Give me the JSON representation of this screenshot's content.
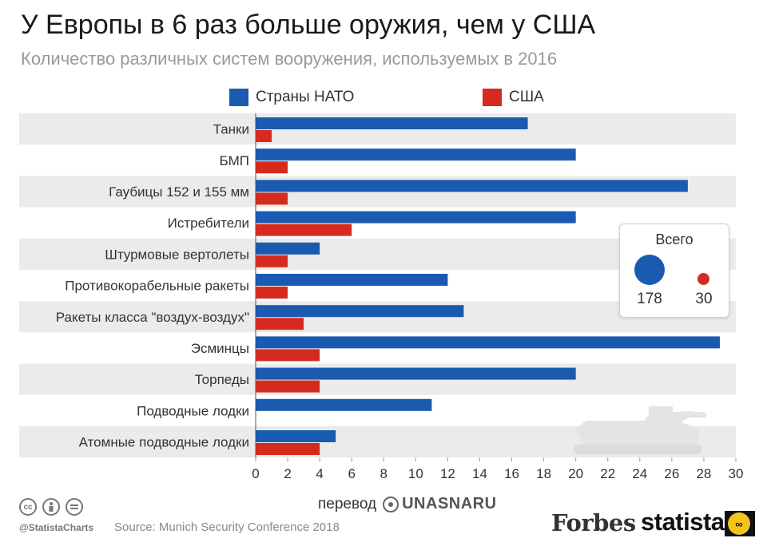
{
  "title": "У Европы в 6 раз больше оружия, чем у США",
  "subtitle": "Количество различных систем вооружения, используемых в 2016",
  "legend": [
    {
      "label": "Страны НАТО",
      "color": "#1a5ab0"
    },
    {
      "label": "США",
      "color": "#d52b1e"
    }
  ],
  "chart_data": {
    "type": "bar",
    "orientation": "horizontal",
    "categories": [
      "Танки",
      "БМП",
      "Гаубицы 152 и 155 мм",
      "Истребители",
      "Штурмовые вертолеты",
      "Противокорабельные ракеты",
      "Ракеты класса \"воздух-воздух\"",
      "Эсминцы",
      "Торпеды",
      "Подводные лодки",
      "Атомные подводные лодки"
    ],
    "series": [
      {
        "name": "Страны НАТО",
        "color": "#1a5ab0",
        "values": [
          17,
          20,
          27,
          20,
          4,
          12,
          13,
          29,
          20,
          11,
          5
        ]
      },
      {
        "name": "США",
        "color": "#d52b1e",
        "values": [
          1,
          2,
          2,
          6,
          2,
          2,
          3,
          4,
          4,
          0,
          4
        ]
      }
    ],
    "xlim": [
      0,
      30
    ],
    "xticks": [
      0,
      2,
      4,
      6,
      8,
      10,
      12,
      14,
      16,
      18,
      20,
      22,
      24,
      26,
      28,
      30
    ],
    "grid": false,
    "legend_position": "top"
  },
  "totals": {
    "title": "Всего",
    "nato": "178",
    "usa": "30",
    "nato_color": "#1a5ab0",
    "usa_color": "#d52b1e"
  },
  "footer": {
    "translation_label": "перевод",
    "translation_brand": "UNASNARU",
    "cc_icons": [
      "cc",
      "by",
      "eq"
    ],
    "handle": "@StatistaCharts",
    "source": "Source: Munich Security Conference 2018",
    "forbes": "Forbes",
    "statista": "statista"
  }
}
